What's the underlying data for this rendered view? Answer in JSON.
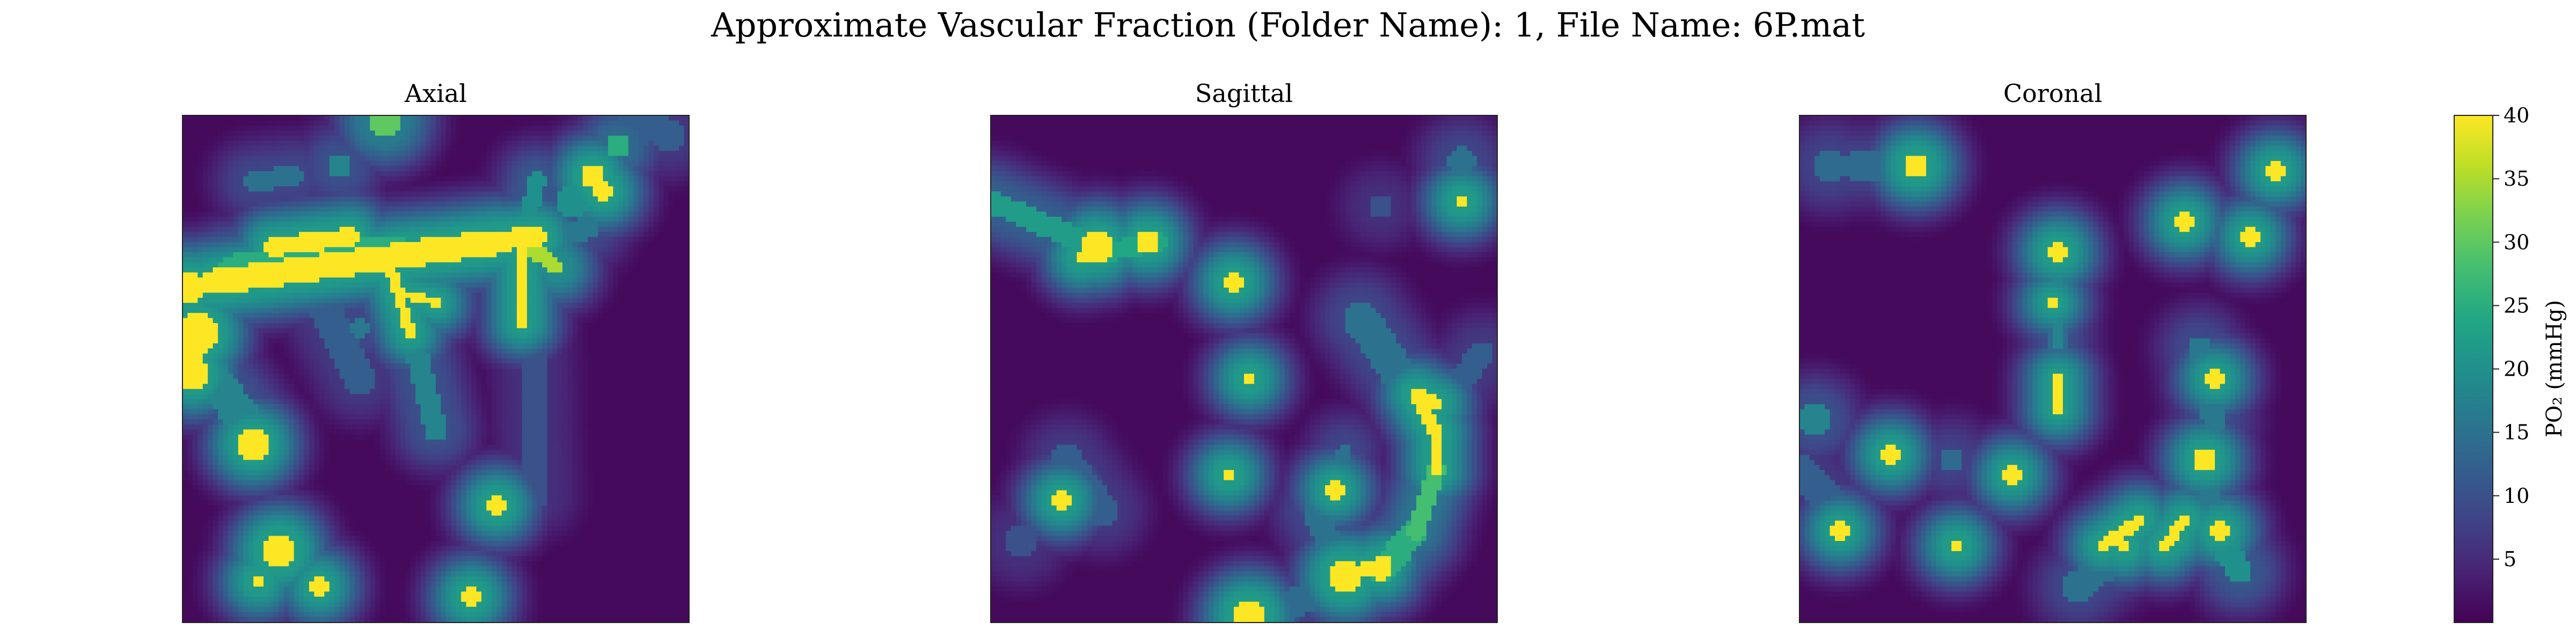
{
  "figure": {
    "title": "Approximate Vascular Fraction (Folder Name): 1, File Name: 6P.mat"
  },
  "chart_data": {
    "type": "heatmap",
    "colormap": "viridis",
    "colorbar": {
      "label": "PO₂ (mmHg)",
      "range": [
        0,
        40
      ],
      "ticks": [
        "5",
        "10",
        "15",
        "20",
        "25",
        "30",
        "35",
        "40"
      ],
      "tick_values": [
        5,
        10,
        15,
        20,
        25,
        30,
        35,
        40
      ]
    },
    "panels": [
      {
        "title": "Axial",
        "axes_visible": false,
        "grid_size": [
          100,
          100
        ],
        "background_value": 1,
        "blobs": [
          [
            1,
            34,
            3.0,
            40
          ],
          [
            3,
            43,
            4.0,
            40
          ],
          [
            1,
            48,
            3.0,
            40
          ],
          [
            2,
            51,
            3.0,
            40
          ],
          [
            14,
            65,
            3.0,
            40
          ],
          [
            62,
            77,
            2.0,
            40
          ],
          [
            15,
            92,
            1.5,
            40
          ],
          [
            40,
            1,
            3.5,
            30
          ],
          [
            86,
            6,
            2.2,
            25
          ],
          [
            31,
            10,
            2.5,
            18
          ],
          [
            35,
            42,
            2.0,
            16
          ],
          [
            77,
            17,
            3.0,
            20
          ],
          [
            19,
            86,
            3.5,
            40
          ],
          [
            27,
            93,
            1.6,
            40
          ],
          [
            57,
            95,
            2.0,
            40
          ],
          [
            81,
            12,
            2.2,
            40
          ],
          [
            83,
            15,
            2.0,
            40
          ],
          [
            96,
            4,
            3.0,
            12
          ]
        ],
        "lines": [
          [
            6,
            33,
            62,
            25,
            2.5,
            40
          ],
          [
            10,
            31,
            42,
            27,
            3.5,
            25
          ],
          [
            42,
            27,
            70,
            24,
            2.0,
            40
          ],
          [
            18,
            26,
            33,
            24,
            1.8,
            40
          ],
          [
            41,
            30,
            45,
            43,
            1.0,
            40
          ],
          [
            43,
            35,
            50,
            37,
            0.8,
            40
          ],
          [
            67,
            25,
            67,
            41,
            1.1,
            40
          ],
          [
            67,
            25,
            74,
            30,
            1.5,
            35
          ],
          [
            67,
            25,
            70,
            13,
            1.6,
            20
          ],
          [
            45,
            42,
            50,
            62,
            2.2,
            18
          ],
          [
            69,
            42,
            70,
            75,
            2.5,
            10
          ],
          [
            1,
            45,
            12,
            60,
            3.5,
            18
          ],
          [
            28,
            38,
            35,
            52,
            3.0,
            12
          ],
          [
            14,
            13,
            22,
            12,
            2.0,
            15
          ],
          [
            85,
            6,
            93,
            0,
            3.5,
            12
          ],
          [
            72,
            25,
            80,
            22,
            2.2,
            16
          ]
        ]
      },
      {
        "title": "Sagittal",
        "axes_visible": false,
        "grid_size": [
          100,
          100
        ],
        "background_value": 1,
        "blobs": [
          [
            21,
            26,
            3.0,
            40
          ],
          [
            31,
            25,
            2.2,
            40
          ],
          [
            18,
            28,
            1.5,
            40
          ],
          [
            48,
            33,
            2.0,
            40
          ],
          [
            51,
            52,
            1.5,
            40
          ],
          [
            47,
            71,
            1.5,
            40
          ],
          [
            68,
            74,
            1.6,
            40
          ],
          [
            70,
            91,
            3.5,
            40
          ],
          [
            51,
            99,
            3.5,
            40
          ],
          [
            93,
            17,
            1.5,
            40
          ],
          [
            14,
            76,
            1.8,
            40
          ],
          [
            77,
            90,
            1.6,
            40
          ],
          [
            93,
            9,
            2.8,
            15
          ],
          [
            77,
            18,
            2.4,
            10
          ],
          [
            6,
            84,
            3.5,
            10
          ]
        ],
        "lines": [
          [
            0,
            17,
            23,
            27,
            2.2,
            22
          ],
          [
            23,
            27,
            33,
            25,
            1.8,
            24
          ],
          [
            84,
            55,
            88,
            57,
            1.2,
            40
          ],
          [
            84,
            55,
            88,
            63,
            1.3,
            40
          ],
          [
            88,
            63,
            88,
            70,
            1.2,
            40
          ],
          [
            88,
            70,
            84,
            82,
            1.8,
            28
          ],
          [
            84,
            82,
            77,
            90,
            2.5,
            25
          ],
          [
            70,
            91,
            78,
            88,
            1.3,
            40
          ],
          [
            73,
            40,
            82,
            53,
            3.5,
            15
          ],
          [
            70,
            91,
            64,
            78,
            2.5,
            15
          ],
          [
            68,
            74,
            70,
            66,
            1.5,
            15
          ],
          [
            90,
            56,
            97,
            47,
            2.5,
            12
          ],
          [
            15,
            68,
            22,
            78,
            3.0,
            12
          ],
          [
            6,
            84,
            14,
            76,
            2.0,
            10
          ],
          [
            55,
            99,
            66,
            93,
            3.0,
            14
          ]
        ]
      },
      {
        "title": "Coronal",
        "axes_visible": false,
        "grid_size": [
          100,
          100
        ],
        "background_value": 1,
        "blobs": [
          [
            23,
            10,
            2.5,
            40
          ],
          [
            94,
            11,
            1.8,
            40
          ],
          [
            76,
            21,
            1.8,
            40
          ],
          [
            51,
            27,
            2.0,
            40
          ],
          [
            89,
            24,
            1.6,
            40
          ],
          [
            50,
            37,
            0.8,
            40
          ],
          [
            82,
            52,
            1.6,
            40
          ],
          [
            18,
            67,
            1.8,
            40
          ],
          [
            42,
            71,
            1.6,
            40
          ],
          [
            80,
            68,
            2.2,
            40
          ],
          [
            8,
            82,
            1.6,
            40
          ],
          [
            31,
            85,
            1.5,
            40
          ],
          [
            64,
            85,
            1.5,
            40
          ],
          [
            74,
            83,
            1.5,
            40
          ],
          [
            83,
            82,
            1.8,
            40
          ],
          [
            3,
            60,
            3.0,
            18
          ],
          [
            6,
            10,
            3.5,
            14
          ],
          [
            30,
            68,
            2.5,
            14
          ],
          [
            96,
            10,
            4.0,
            12
          ]
        ],
        "lines": [
          [
            51,
            27,
            51,
            45,
            1.2,
            18
          ],
          [
            51,
            52,
            51,
            58,
            0.8,
            40
          ],
          [
            51,
            41,
            51,
            60,
            1.8,
            14
          ],
          [
            60,
            85,
            67,
            80,
            1.2,
            40
          ],
          [
            72,
            85,
            76,
            80,
            1.1,
            40
          ],
          [
            80,
            68,
            82,
            80,
            2.0,
            16
          ],
          [
            79,
            46,
            82,
            60,
            2.5,
            16
          ],
          [
            82,
            82,
            87,
            90,
            2.5,
            20
          ],
          [
            55,
            93,
            65,
            85,
            3.0,
            15
          ],
          [
            0,
            70,
            10,
            80,
            3.0,
            12
          ],
          [
            10,
            10,
            23,
            10,
            2.5,
            14
          ]
        ]
      }
    ]
  }
}
